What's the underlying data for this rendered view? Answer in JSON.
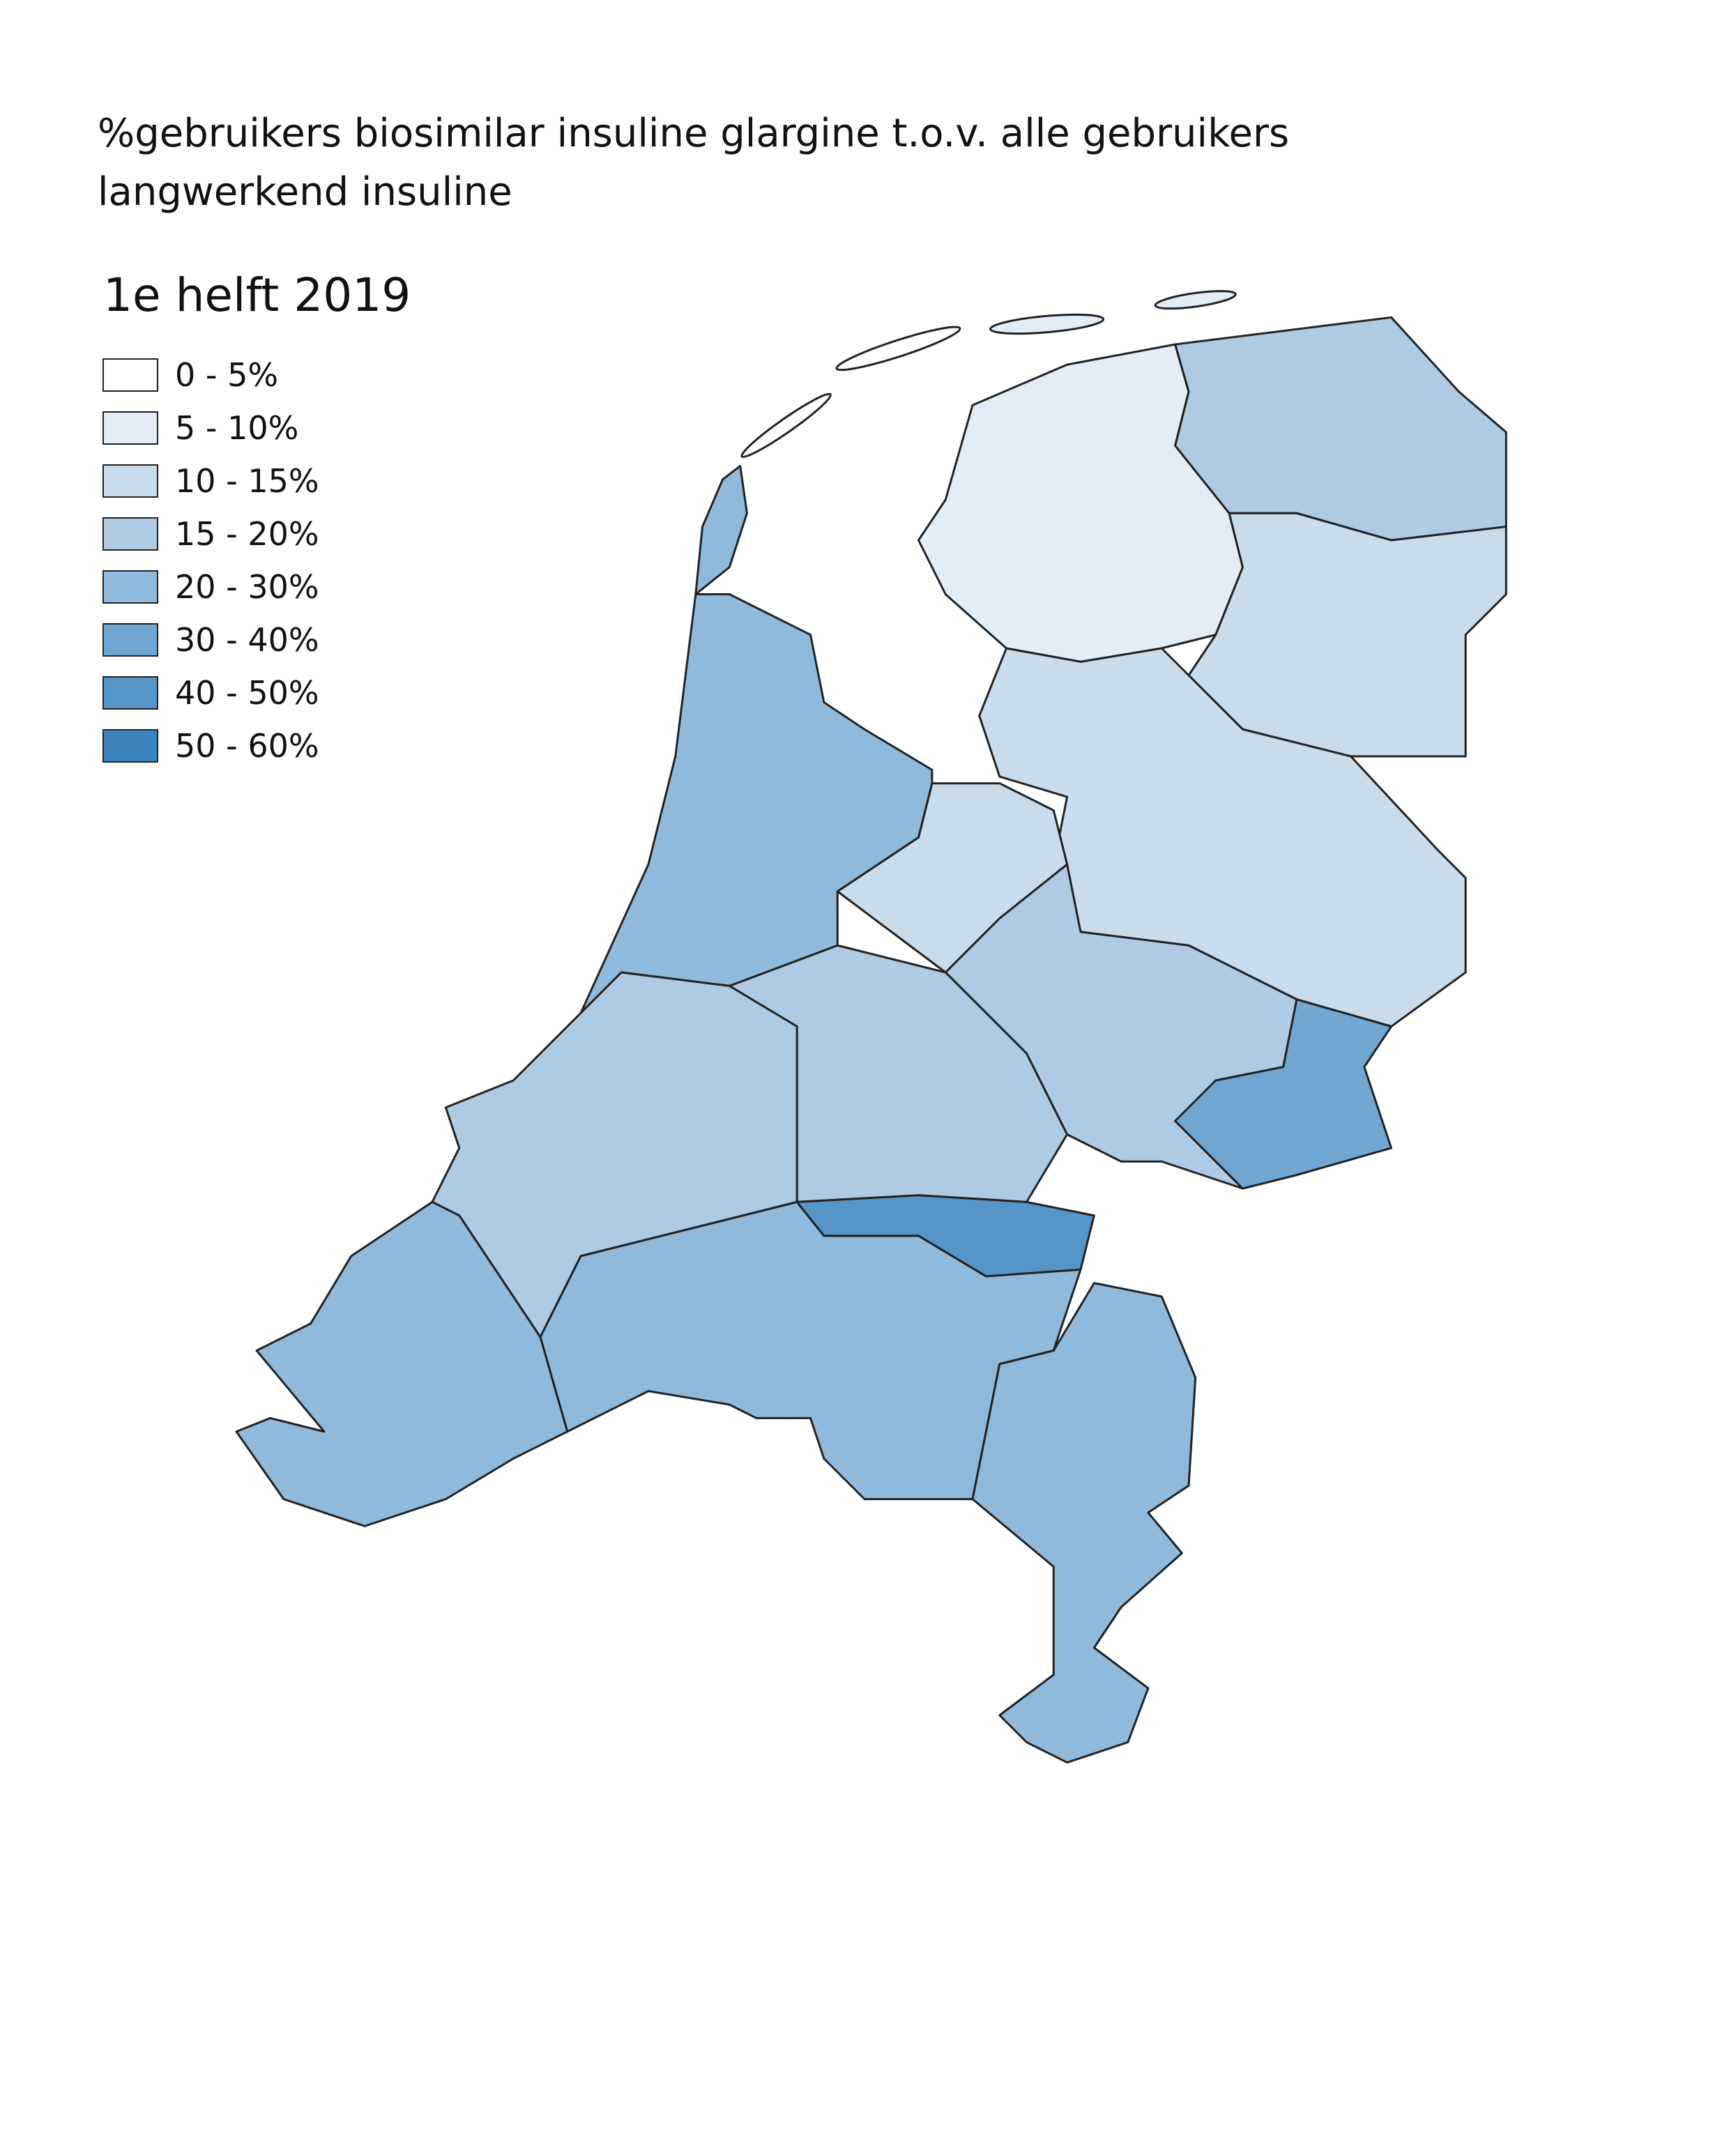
{
  "title": "%gebruikers biosimilar insuline glargine t.o.v. alle gebruikers langwerkend insuline",
  "legend": {
    "title": "1e helft 2019",
    "items": [
      {
        "label": "0 - 5%",
        "color": "#ffffff"
      },
      {
        "label": "5 - 10%",
        "color": "#e3edf7"
      },
      {
        "label": "10 - 15%",
        "color": "#c9dcec"
      },
      {
        "label": "15 - 20%",
        "color": "#aecbe3"
      },
      {
        "label": "20 - 30%",
        "color": "#8fbadc"
      },
      {
        "label": "30 - 40%",
        "color": "#6fa7d2"
      },
      {
        "label": "40 - 50%",
        "color": "#5695c8"
      },
      {
        "label": "50 - 60%",
        "color": "#3b84bd"
      }
    ]
  }
}
